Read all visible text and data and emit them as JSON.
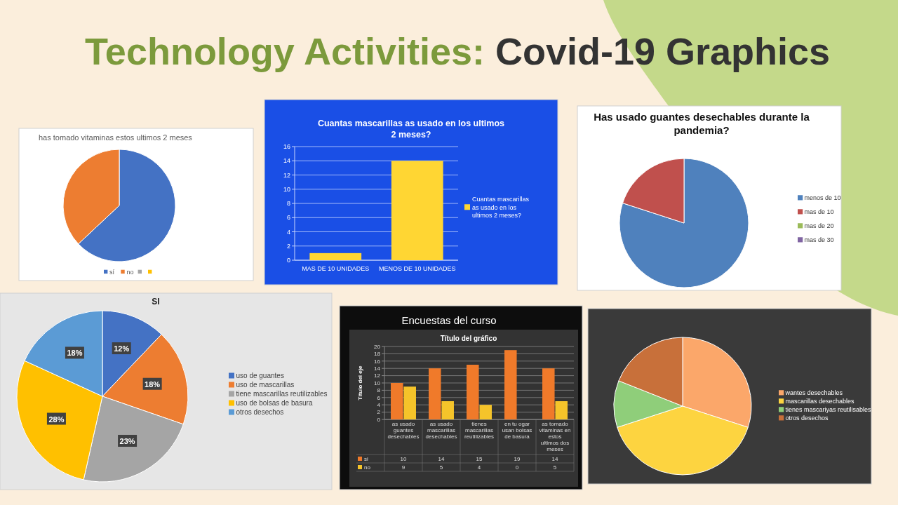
{
  "chart_data": [
    {
      "type": "pie",
      "title": "has tomado vitaminas estos ultimos 2 meses",
      "annotations": [
        "Technology Activities: Covid-19 Graphics"
      ],
      "categories": [
        "sí",
        "no",
        null,
        null
      ],
      "values": [
        63,
        37,
        0,
        0
      ],
      "colors": [
        "#4472c4",
        "#ed7d31",
        "#a5a5a5",
        "#ffc000"
      ],
      "legend": "bottom"
    },
    {
      "type": "bar",
      "title": "Cuantas mascarillas as usado en los ultimos 2 meses?",
      "categories": [
        "MAS DE 10 UNIDADES",
        "MENOS DE 10 UNIDADES"
      ],
      "series": [
        {
          "name": "Cuantas mascarillas as usado en los ultimos 2 meses?",
          "color": "#ffd633",
          "values": [
            1,
            14
          ]
        }
      ],
      "ylim": [
        0,
        16
      ],
      "yticks": [
        0,
        2,
        4,
        6,
        8,
        10,
        12,
        14,
        16
      ],
      "grid": "y",
      "legend": "right"
    },
    {
      "type": "pie",
      "title": "Has usado guantes desechables durante la pandemia?",
      "categories": [
        "menos de 10",
        "mas de 10",
        "mas de 20",
        "mas de 30"
      ],
      "values": [
        80,
        20,
        0,
        0
      ],
      "colors": [
        "#4f81bd",
        "#c0504d",
        "#9bbb59",
        "#8064a2"
      ],
      "legend": "right"
    },
    {
      "type": "pie",
      "title": "SI",
      "categories": [
        "uso de guantes",
        "uso de mascarillas",
        "tiene mascarillas reutilizables",
        "uso de bolsas de basura",
        "otros desechos"
      ],
      "values": [
        12,
        18,
        23,
        28,
        18
      ],
      "value_labels": [
        "12%",
        "18%",
        "23%",
        "28%",
        "18%"
      ],
      "colors": [
        "#4472c4",
        "#ed7d31",
        "#a5a5a5",
        "#ffc000",
        "#5b9bd5"
      ],
      "legend": "right"
    },
    {
      "type": "bar",
      "title": "Encuestas del curso",
      "subtitle": "Título del gráfico",
      "ylabel": "Título del eje",
      "categories": [
        "as usado guantes desechables",
        "as usado mascarillas desechables",
        "tienes mascarillas reutilizables",
        "en tu ogar usan bolsas de basura",
        "as tomado vitaminas en estos ultimos dos meses"
      ],
      "series": [
        {
          "name": "si",
          "color": "#f07a2a",
          "values": [
            10,
            14,
            15,
            19,
            14
          ]
        },
        {
          "name": "no",
          "color": "#f5c42a",
          "values": [
            9,
            5,
            4,
            0,
            5
          ]
        }
      ],
      "ylim": [
        0,
        20
      ],
      "yticks": [
        0,
        2,
        4,
        6,
        8,
        10,
        12,
        14,
        16,
        18,
        20
      ],
      "grid": "y",
      "data_labels": true,
      "legend": "bottom"
    },
    {
      "type": "pie",
      "categories": [
        "wantes desechables",
        "mascarillas desechables",
        "tienes mascariyas reutilisables",
        "otros desechos"
      ],
      "values": [
        30,
        40,
        11,
        19
      ],
      "colors": [
        "#fba76a",
        "#fdd440",
        "#8fce7a",
        "#c8703a"
      ],
      "legend": "right"
    }
  ]
}
